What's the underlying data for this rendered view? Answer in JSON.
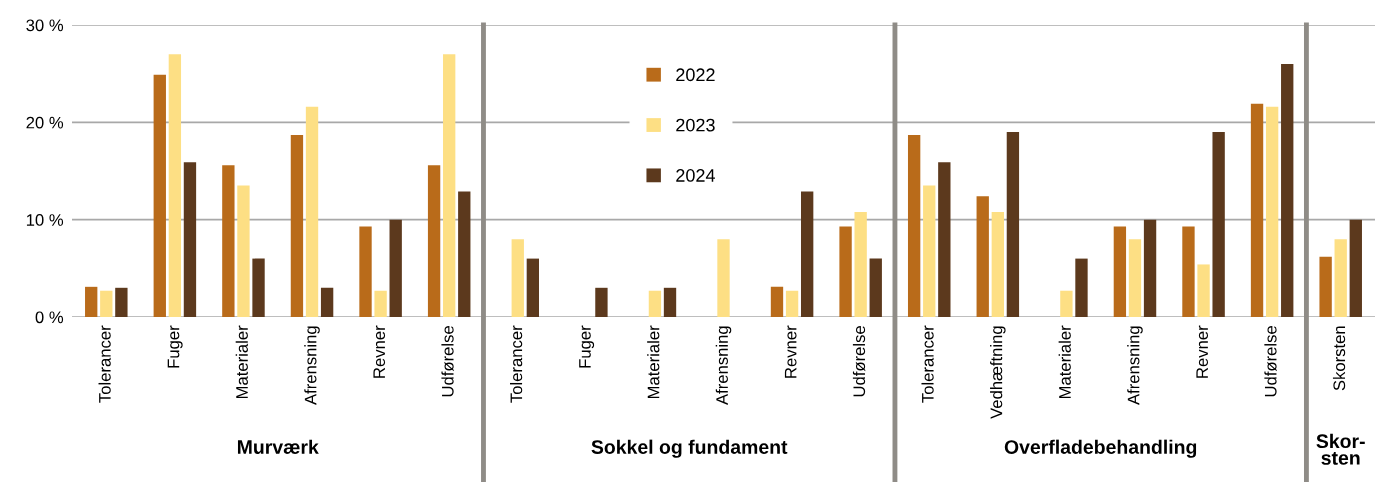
{
  "chart_data": [
    {
      "type": "bar",
      "xlabel": "Murværk",
      "categories": [
        "Tolerancer",
        "Fuger",
        "Materialer",
        "Afrensning",
        "Revner",
        "Udførelse"
      ],
      "series": [
        {
          "color": "#b96b1a",
          "values": [
            3.1,
            24.9,
            15.6,
            18.7,
            9.3,
            15.6
          ]
        },
        {
          "color": "#fddf84",
          "values": [
            2.7,
            27.0,
            13.5,
            21.6,
            2.7,
            27.0
          ]
        },
        {
          "color": "#5c391d",
          "values": [
            3.0,
            15.9,
            6.0,
            3.0,
            10.0,
            12.9
          ]
        }
      ],
      "ylim": [
        0,
        30
      ],
      "yticks": [
        {
          "value": 0,
          "label": "0 %"
        },
        {
          "value": 10,
          "label": "10 %"
        },
        {
          "value": 20,
          "label": "20 %"
        },
        {
          "value": 30,
          "label": "30 %"
        }
      ],
      "grid": "y"
    },
    {
      "type": "bar",
      "xlabel": "Sokkel og fundament",
      "categories": [
        "Tolerancer",
        "Fuger",
        "Materialer",
        "Afrensning",
        "Revner",
        "Udførelse"
      ],
      "series": [
        {
          "name": "2022",
          "color": "#b96b1a",
          "values": [
            0,
            0,
            0,
            0,
            3.1,
            9.3
          ]
        },
        {
          "name": "2023",
          "color": "#fddf84",
          "values": [
            8.0,
            0,
            2.7,
            8.0,
            2.7,
            10.8
          ]
        },
        {
          "name": "2024",
          "color": "#5c391d",
          "values": [
            6.0,
            3.0,
            3.0,
            0,
            12.9,
            6.0
          ]
        }
      ],
      "ylim": [
        0,
        30
      ],
      "yticks": [
        0,
        10,
        20,
        30
      ],
      "tick_labels": "x",
      "grid": "y",
      "legend": "top"
    },
    {
      "type": "bar",
      "xlabel": "Overfladebehandling",
      "categories": [
        "Tolerancer",
        "Vedhæftning",
        "Materialer",
        "Afrensning",
        "Revner",
        "Udførelse"
      ],
      "series": [
        {
          "color": "#b96b1a",
          "values": [
            18.7,
            12.4,
            0,
            9.3,
            9.3,
            21.9
          ]
        },
        {
          "color": "#fddf84",
          "values": [
            13.5,
            10.8,
            2.7,
            8.0,
            5.4,
            21.6
          ]
        },
        {
          "color": "#5c391d",
          "values": [
            15.9,
            19.0,
            6.0,
            10.0,
            19.0,
            26.0
          ]
        }
      ],
      "ylim": [
        0,
        30
      ],
      "yticks": [
        0,
        10,
        20,
        30
      ],
      "tick_labels": "x",
      "grid": "y"
    },
    {
      "type": "bar",
      "xlabel": "Skor-\nsten",
      "categories": [
        "Skorsten"
      ],
      "series": [
        {
          "color": "#b96b1a",
          "values": [
            6.2
          ]
        },
        {
          "color": "#fddf84",
          "values": [
            8.0
          ]
        },
        {
          "color": "#5c391d",
          "values": [
            10.0
          ]
        }
      ],
      "ylim": [
        0,
        30
      ],
      "yticks": [
        0,
        10,
        20,
        30
      ],
      "tick_labels": "x",
      "grid": "y"
    }
  ]
}
